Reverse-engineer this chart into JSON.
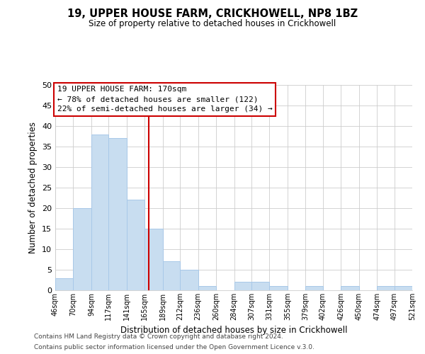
{
  "title": "19, UPPER HOUSE FARM, CRICKHOWELL, NP8 1BZ",
  "subtitle": "Size of property relative to detached houses in Crickhowell",
  "xlabel": "Distribution of detached houses by size in Crickhowell",
  "ylabel": "Number of detached properties",
  "bar_color": "#c8ddf0",
  "bar_edge_color": "#a8c8e8",
  "bins": [
    46,
    70,
    94,
    117,
    141,
    165,
    189,
    212,
    236,
    260,
    284,
    307,
    331,
    355,
    379,
    402,
    426,
    450,
    474,
    497,
    521
  ],
  "counts": [
    3,
    20,
    38,
    37,
    22,
    15,
    7,
    5,
    1,
    0,
    2,
    2,
    1,
    0,
    1,
    0,
    1,
    0,
    1,
    1
  ],
  "tick_labels": [
    "46sqm",
    "70sqm",
    "94sqm",
    "117sqm",
    "141sqm",
    "165sqm",
    "189sqm",
    "212sqm",
    "236sqm",
    "260sqm",
    "284sqm",
    "307sqm",
    "331sqm",
    "355sqm",
    "379sqm",
    "402sqm",
    "426sqm",
    "450sqm",
    "474sqm",
    "497sqm",
    "521sqm"
  ],
  "ylim": [
    0,
    50
  ],
  "yticks": [
    0,
    5,
    10,
    15,
    20,
    25,
    30,
    35,
    40,
    45,
    50
  ],
  "property_line_x": 170,
  "property_line_color": "#cc0000",
  "annotation_title": "19 UPPER HOUSE FARM: 170sqm",
  "annotation_line1": "← 78% of detached houses are smaller (122)",
  "annotation_line2": "22% of semi-detached houses are larger (34) →",
  "footer_line1": "Contains HM Land Registry data © Crown copyright and database right 2024.",
  "footer_line2": "Contains public sector information licensed under the Open Government Licence v.3.0.",
  "background_color": "#ffffff",
  "grid_color": "#cccccc"
}
